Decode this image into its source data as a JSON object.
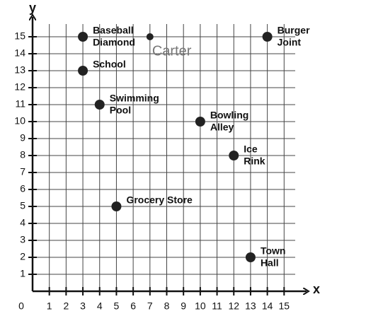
{
  "chart_data": {
    "type": "scatter",
    "x_label": "x",
    "y_label": "y",
    "x": [
      3,
      14,
      3,
      4,
      10,
      12,
      5,
      13
    ],
    "values": [
      15,
      15,
      13,
      11,
      10,
      8,
      5,
      2
    ],
    "labels": [
      [
        "Baseball",
        "Diamond"
      ],
      [
        "Burger",
        "Joint"
      ],
      [
        "School"
      ],
      [
        "Swimming",
        "Pool"
      ],
      [
        "Bowling",
        "Alley"
      ],
      [
        "Ice",
        "Rink"
      ],
      [
        "Grocery Store"
      ],
      [
        "Town",
        "Hall"
      ]
    ],
    "color": "#222222",
    "annotations": [
      {
        "text": "Carter",
        "x": 7,
        "y": 15
      }
    ],
    "xlim": [
      0,
      16
    ],
    "ylim": [
      0,
      16
    ],
    "xticks": [
      0,
      1,
      2,
      3,
      4,
      5,
      6,
      7,
      8,
      9,
      10,
      11,
      12,
      13,
      14,
      15
    ],
    "yticks": [
      1,
      2,
      3,
      4,
      5,
      6,
      7,
      8,
      9,
      10,
      11,
      12,
      13,
      14,
      15
    ],
    "grid": true
  }
}
